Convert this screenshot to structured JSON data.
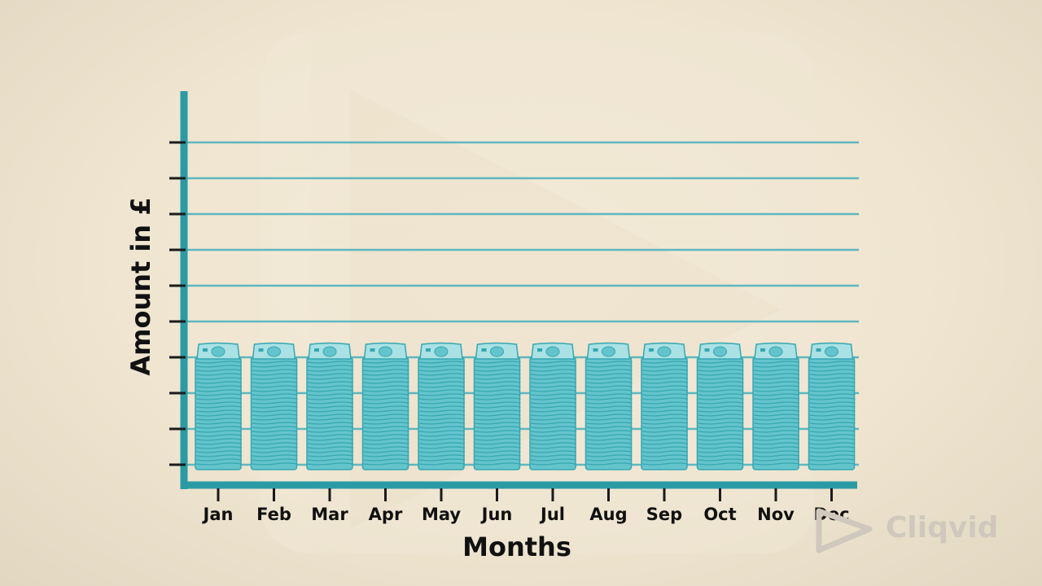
{
  "chart_data": {
    "type": "bar",
    "categories": [
      "Jan",
      "Feb",
      "Mar",
      "Apr",
      "May",
      "Jun",
      "Jul",
      "Aug",
      "Sep",
      "Oct",
      "Nov",
      "Dec"
    ],
    "values": [
      3.5,
      3.5,
      3.5,
      3.5,
      3.5,
      3.5,
      3.5,
      3.5,
      3.5,
      3.5,
      3.5,
      3.5
    ],
    "xlabel": "Months",
    "ylabel": "Amount in £",
    "ylim": [
      0,
      10.5
    ],
    "grid": true,
    "bar_style": "stack-of-banknotes-icon",
    "colors": {
      "axis": "#2a9ba5",
      "gridline": "#5fb7c0",
      "banknote": "#64c4cc",
      "banknote_dark": "#36a7b1",
      "banknote_light": "#a9e1e4"
    }
  },
  "watermark": {
    "logo_text": "Cliqvid",
    "icon": "play-triangle-icon"
  }
}
